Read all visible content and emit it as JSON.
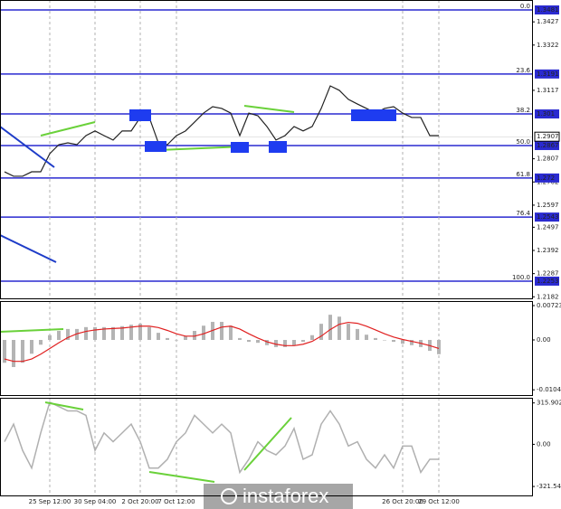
{
  "watermark": "instaforex",
  "chart_data": [
    {
      "type": "candles-line",
      "color": "#222222",
      "values": [
        1.2748,
        1.2728,
        1.2728,
        1.2748,
        1.2748,
        1.283,
        1.2871,
        1.2879,
        1.2871,
        1.2912,
        1.2933,
        1.2912,
        1.2892,
        1.2933,
        1.2933,
        1.2994,
        1.2994,
        1.2879,
        1.2871,
        1.2912,
        1.2933,
        1.2973,
        1.3014,
        1.3043,
        1.3035,
        1.3014,
        1.2912,
        1.3014,
        1.3002,
        1.2953,
        1.2892,
        1.2912,
        1.2953,
        1.2933,
        1.2953,
        1.3035,
        1.3137,
        1.3117,
        1.3076,
        1.3055,
        1.3035,
        1.3014,
        1.3035,
        1.3043,
        1.3014,
        1.2994,
        1.2994,
        1.2912,
        1.2912
      ],
      "ylim": [
        1.2175,
        1.3526
      ],
      "yticks": [
        1.3427,
        1.3322,
        1.3117,
        1.2807,
        1.2702,
        1.2597,
        1.2497,
        1.2392,
        1.2287,
        1.2182
      ],
      "fib_color": "#2a2ad0",
      "fib_levels": [
        {
          "level": "0.0",
          "price": 1.3481
        },
        {
          "level": "23.6",
          "price": 1.3191
        },
        {
          "level": "38.2",
          "price": 1.301
        },
        {
          "level": "50.0",
          "price": 1.2867
        },
        {
          "level": "61.8",
          "price": 1.272
        },
        {
          "level": "76.4",
          "price": 1.2543
        },
        {
          "level": "100.0",
          "price": 1.2253
        }
      ],
      "current_price": 1.2907
    },
    {
      "type": "macd",
      "histogram": {
        "color": "#b4b4b4",
        "values": [
          -0.0048,
          -0.0057,
          -0.0048,
          -0.0029,
          -0.001,
          0.001,
          0.0019,
          0.0023,
          0.0023,
          0.0027,
          0.0027,
          0.0027,
          0.0027,
          0.0029,
          0.0032,
          0.0034,
          0.0027,
          0.0015,
          0.0004,
          0.0,
          0.0008,
          0.0019,
          0.003,
          0.0038,
          0.0038,
          0.003,
          0.0004,
          -0.0004,
          -0.0006,
          -0.0011,
          -0.0015,
          -0.0015,
          -0.0011,
          -0.0004,
          0.001,
          0.0034,
          0.0053,
          0.0049,
          0.0034,
          0.0023,
          0.0011,
          0.0004,
          0.0,
          -0.0004,
          -0.0008,
          -0.0011,
          -0.0015,
          -0.0023,
          -0.003
        ]
      },
      "signal": {
        "color": "#e02020",
        "values": [
          -0.004,
          -0.0045,
          -0.0045,
          -0.004,
          -0.003,
          -0.0018,
          -0.0006,
          0.0005,
          0.0013,
          0.0018,
          0.0021,
          0.0023,
          0.0024,
          0.0025,
          0.0027,
          0.0029,
          0.0029,
          0.0026,
          0.002,
          0.0013,
          0.0008,
          0.0008,
          0.0013,
          0.002,
          0.0027,
          0.0029,
          0.0023,
          0.0013,
          0.0004,
          -0.0004,
          -0.0009,
          -0.0012,
          -0.0012,
          -0.0009,
          -0.0003,
          0.0008,
          0.0022,
          0.0033,
          0.0037,
          0.0035,
          0.0029,
          0.0021,
          0.0013,
          0.0006,
          0.0001,
          -0.0003,
          -0.0007,
          -0.0012,
          -0.0018
        ]
      },
      "ylim": [
        -0.0116,
        0.00818
      ],
      "yticks": [
        0.00723,
        {
          "value": 0,
          "label": "0.00"
        },
        -0.01049
      ]
    },
    {
      "type": "line",
      "color": "#b0b0b0",
      "values": [
        20,
        154,
        -47,
        -181,
        87,
        322,
        288,
        255,
        255,
        221,
        -47,
        87,
        20,
        87,
        154,
        20,
        -181,
        -181,
        -114,
        20,
        87,
        221,
        154,
        87,
        154,
        87,
        -214,
        -114,
        20,
        -47,
        -80,
        -13,
        121,
        -114,
        -80,
        154,
        255,
        154,
        -13,
        20,
        -114,
        -181,
        -80,
        -181,
        -13,
        -13,
        -214,
        -114,
        -114
      ],
      "ylim": [
        -390,
        355
      ],
      "yticks": [
        315.9023,
        {
          "value": 0,
          "label": "0.00"
        },
        -321.547
      ],
      "categories": [
        null,
        null,
        null,
        null,
        null,
        "25 Sep 12:00",
        null,
        null,
        null,
        null,
        "30 Sep 04:00",
        null,
        null,
        null,
        null,
        "2 Oct 20:00",
        null,
        null,
        null,
        "7 Oct 12:00",
        null,
        null,
        null,
        null,
        null,
        null,
        null,
        null,
        null,
        null,
        null,
        null,
        null,
        null,
        null,
        null,
        null,
        null,
        null,
        null,
        null,
        null,
        null,
        null,
        "26 Oct 20:00",
        null,
        null,
        null,
        "29 Oct 12:00"
      ]
    }
  ]
}
